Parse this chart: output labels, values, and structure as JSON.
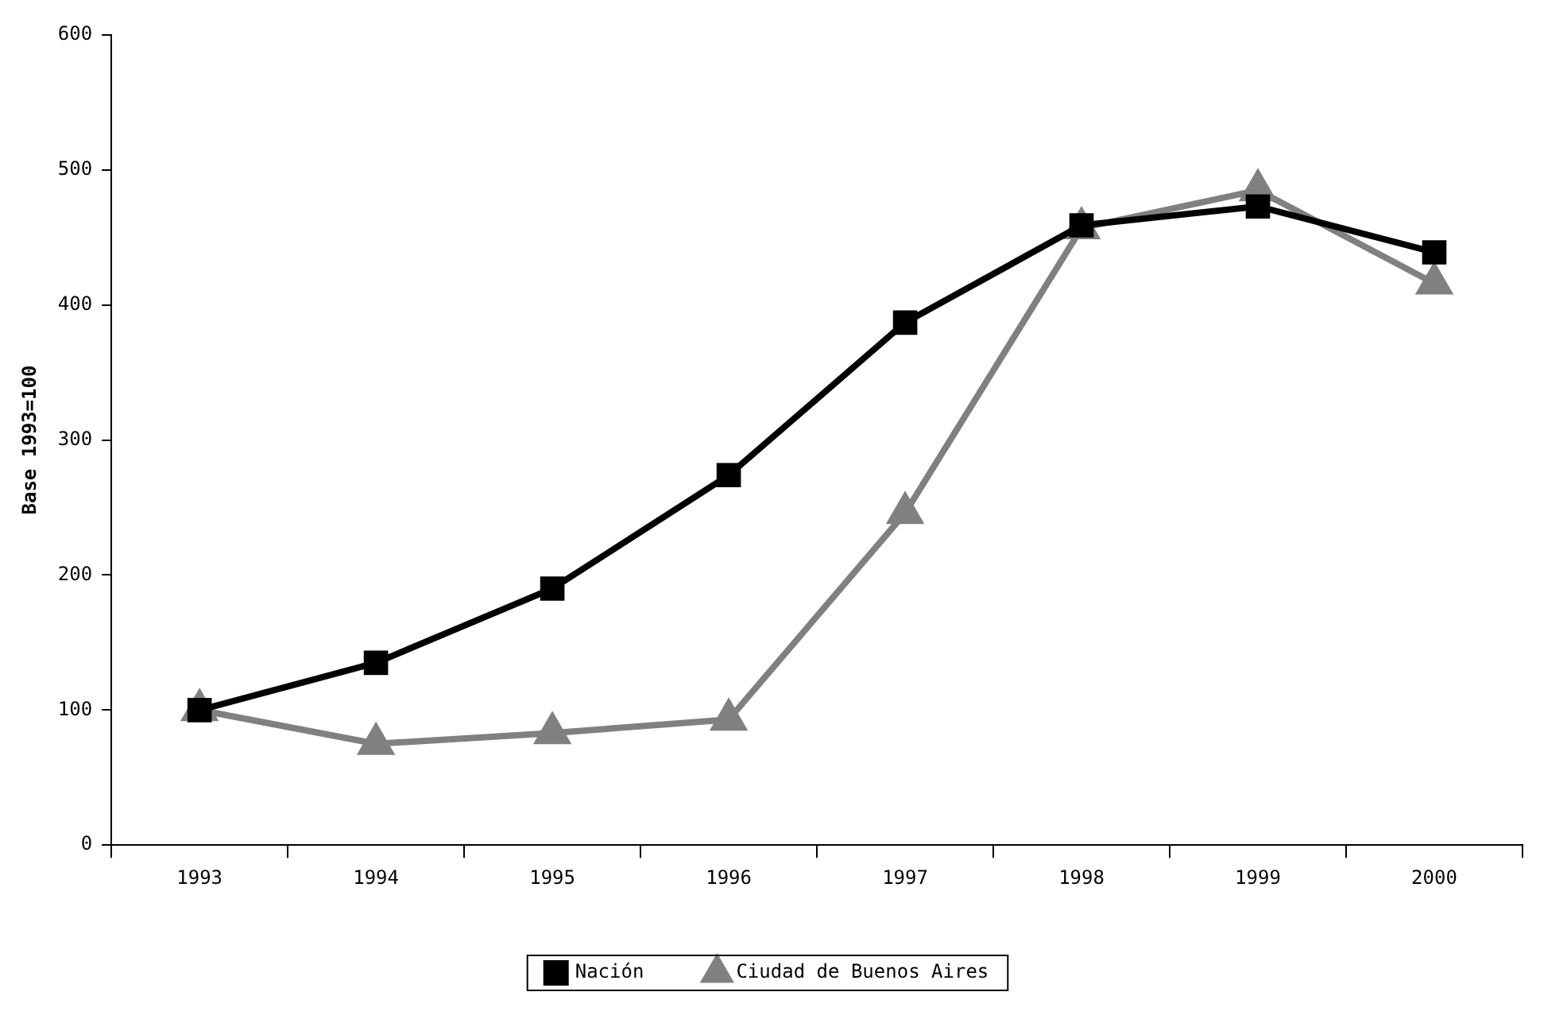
{
  "chart_data": {
    "type": "line",
    "ylabel": "Base 1993=100",
    "categories": [
      "1993",
      "1994",
      "1995",
      "1996",
      "1997",
      "1998",
      "1999",
      "2000"
    ],
    "series": [
      {
        "name": "Ciudad de Buenos Aires",
        "color": "#808080",
        "marker": "triangle",
        "values": [
          100,
          75,
          83,
          93,
          246,
          457,
          485,
          416
        ]
      },
      {
        "name": "Nación",
        "color": "#000000",
        "marker": "square",
        "values": [
          100,
          135,
          190,
          274,
          387,
          459,
          473,
          439
        ]
      }
    ],
    "ylim": [
      0,
      600
    ],
    "yticks": [
      0,
      100,
      200,
      300,
      400,
      500,
      600
    ],
    "grid": false,
    "legend": "bottom"
  }
}
